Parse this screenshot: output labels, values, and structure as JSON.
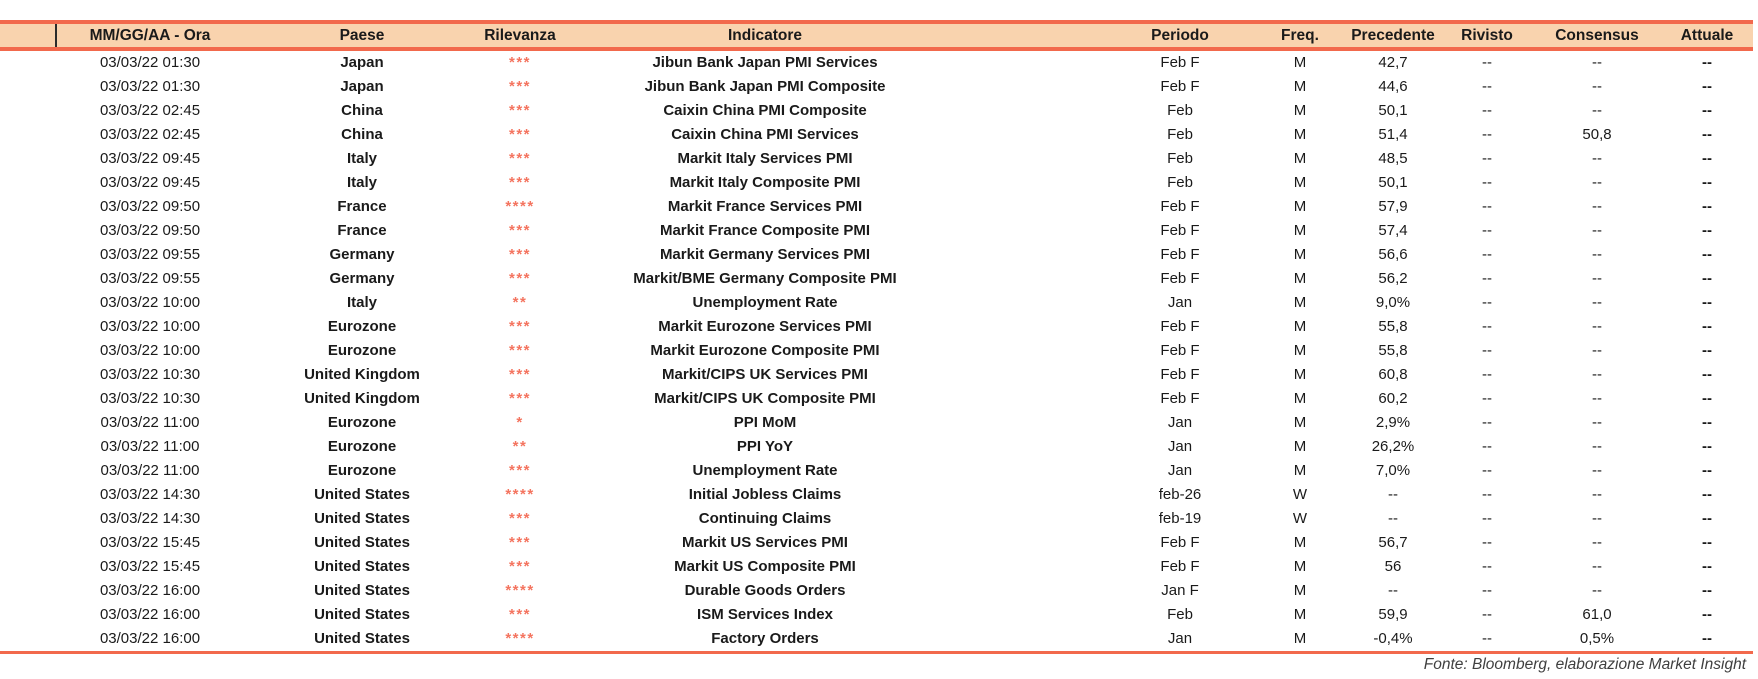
{
  "table": {
    "columns": [
      "MM/GG/AA - Ora",
      "Paese",
      "Rilevanza",
      "Indicatore",
      "Periodo",
      "Freq.",
      "Precedente",
      "Rivisto",
      "Consensus",
      "Attuale"
    ],
    "rows": [
      {
        "datetime": "03/03/22 01:30",
        "country": "Japan",
        "relevance": "***",
        "indicator": "Jibun Bank Japan PMI Services",
        "period": "Feb F",
        "freq": "M",
        "previous": "42,7",
        "revised": "--",
        "consensus": "--",
        "actual": "--"
      },
      {
        "datetime": "03/03/22 01:30",
        "country": "Japan",
        "relevance": "***",
        "indicator": "Jibun Bank Japan PMI Composite",
        "period": "Feb F",
        "freq": "M",
        "previous": "44,6",
        "revised": "--",
        "consensus": "--",
        "actual": "--"
      },
      {
        "datetime": "03/03/22 02:45",
        "country": "China",
        "relevance": "***",
        "indicator": "Caixin China PMI Composite",
        "period": "Feb",
        "freq": "M",
        "previous": "50,1",
        "revised": "--",
        "consensus": "--",
        "actual": "--"
      },
      {
        "datetime": "03/03/22 02:45",
        "country": "China",
        "relevance": "***",
        "indicator": "Caixin China PMI Services",
        "period": "Feb",
        "freq": "M",
        "previous": "51,4",
        "revised": "--",
        "consensus": "50,8",
        "actual": "--"
      },
      {
        "datetime": "03/03/22 09:45",
        "country": "Italy",
        "relevance": "***",
        "indicator": "Markit Italy Services PMI",
        "period": "Feb",
        "freq": "M",
        "previous": "48,5",
        "revised": "--",
        "consensus": "--",
        "actual": "--"
      },
      {
        "datetime": "03/03/22 09:45",
        "country": "Italy",
        "relevance": "***",
        "indicator": "Markit Italy Composite PMI",
        "period": "Feb",
        "freq": "M",
        "previous": "50,1",
        "revised": "--",
        "consensus": "--",
        "actual": "--"
      },
      {
        "datetime": "03/03/22 09:50",
        "country": "France",
        "relevance": "****",
        "indicator": "Markit France Services PMI",
        "period": "Feb F",
        "freq": "M",
        "previous": "57,9",
        "revised": "--",
        "consensus": "--",
        "actual": "--"
      },
      {
        "datetime": "03/03/22 09:50",
        "country": "France",
        "relevance": "***",
        "indicator": "Markit France Composite PMI",
        "period": "Feb F",
        "freq": "M",
        "previous": "57,4",
        "revised": "--",
        "consensus": "--",
        "actual": "--"
      },
      {
        "datetime": "03/03/22 09:55",
        "country": "Germany",
        "relevance": "***",
        "indicator": "Markit Germany Services PMI",
        "period": "Feb F",
        "freq": "M",
        "previous": "56,6",
        "revised": "--",
        "consensus": "--",
        "actual": "--"
      },
      {
        "datetime": "03/03/22 09:55",
        "country": "Germany",
        "relevance": "***",
        "indicator": "Markit/BME Germany Composite PMI",
        "period": "Feb F",
        "freq": "M",
        "previous": "56,2",
        "revised": "--",
        "consensus": "--",
        "actual": "--"
      },
      {
        "datetime": "03/03/22 10:00",
        "country": "Italy",
        "relevance": "**",
        "indicator": "Unemployment Rate",
        "period": "Jan",
        "freq": "M",
        "previous": "9,0%",
        "revised": "--",
        "consensus": "--",
        "actual": "--"
      },
      {
        "datetime": "03/03/22 10:00",
        "country": "Eurozone",
        "relevance": "***",
        "indicator": "Markit Eurozone Services PMI",
        "period": "Feb F",
        "freq": "M",
        "previous": "55,8",
        "revised": "--",
        "consensus": "--",
        "actual": "--"
      },
      {
        "datetime": "03/03/22 10:00",
        "country": "Eurozone",
        "relevance": "***",
        "indicator": "Markit Eurozone Composite PMI",
        "period": "Feb F",
        "freq": "M",
        "previous": "55,8",
        "revised": "--",
        "consensus": "--",
        "actual": "--"
      },
      {
        "datetime": "03/03/22 10:30",
        "country": "United Kingdom",
        "relevance": "***",
        "indicator": "Markit/CIPS UK Services PMI",
        "period": "Feb F",
        "freq": "M",
        "previous": "60,8",
        "revised": "--",
        "consensus": "--",
        "actual": "--"
      },
      {
        "datetime": "03/03/22 10:30",
        "country": "United Kingdom",
        "relevance": "***",
        "indicator": "Markit/CIPS UK Composite PMI",
        "period": "Feb F",
        "freq": "M",
        "previous": "60,2",
        "revised": "--",
        "consensus": "--",
        "actual": "--"
      },
      {
        "datetime": "03/03/22 11:00",
        "country": "Eurozone",
        "relevance": "*",
        "indicator": "PPI MoM",
        "period": "Jan",
        "freq": "M",
        "previous": "2,9%",
        "revised": "--",
        "consensus": "--",
        "actual": "--"
      },
      {
        "datetime": "03/03/22 11:00",
        "country": "Eurozone",
        "relevance": "**",
        "indicator": "PPI YoY",
        "period": "Jan",
        "freq": "M",
        "previous": "26,2%",
        "revised": "--",
        "consensus": "--",
        "actual": "--"
      },
      {
        "datetime": "03/03/22 11:00",
        "country": "Eurozone",
        "relevance": "***",
        "indicator": "Unemployment Rate",
        "period": "Jan",
        "freq": "M",
        "previous": "7,0%",
        "revised": "--",
        "consensus": "--",
        "actual": "--"
      },
      {
        "datetime": "03/03/22 14:30",
        "country": "United States",
        "relevance": "****",
        "indicator": "Initial Jobless Claims",
        "period": "feb-26",
        "freq": "W",
        "previous": "--",
        "revised": "--",
        "consensus": "--",
        "actual": "--"
      },
      {
        "datetime": "03/03/22 14:30",
        "country": "United States",
        "relevance": "***",
        "indicator": "Continuing Claims",
        "period": "feb-19",
        "freq": "W",
        "previous": "--",
        "revised": "--",
        "consensus": "--",
        "actual": "--"
      },
      {
        "datetime": "03/03/22 15:45",
        "country": "United States",
        "relevance": "***",
        "indicator": "Markit US Services PMI",
        "period": "Feb F",
        "freq": "M",
        "previous": "56,7",
        "revised": "--",
        "consensus": "--",
        "actual": "--"
      },
      {
        "datetime": "03/03/22 15:45",
        "country": "United States",
        "relevance": "***",
        "indicator": "Markit US Composite PMI",
        "period": "Feb F",
        "freq": "M",
        "previous": "56",
        "revised": "--",
        "consensus": "--",
        "actual": "--"
      },
      {
        "datetime": "03/03/22 16:00",
        "country": "United States",
        "relevance": "****",
        "indicator": "Durable Goods Orders",
        "period": "Jan F",
        "freq": "M",
        "previous": "--",
        "revised": "--",
        "consensus": "--",
        "actual": "--"
      },
      {
        "datetime": "03/03/22 16:00",
        "country": "United States",
        "relevance": "***",
        "indicator": "ISM Services Index",
        "period": "Feb",
        "freq": "M",
        "previous": "59,9",
        "revised": "--",
        "consensus": "61,0",
        "actual": "--"
      },
      {
        "datetime": "03/03/22 16:00",
        "country": "United States",
        "relevance": "****",
        "indicator": "Factory Orders",
        "period": "Jan",
        "freq": "M",
        "previous": "-0,4%",
        "revised": "--",
        "consensus": "0,5%",
        "actual": "--"
      }
    ]
  },
  "footer": {
    "source": "Fonte: Bloomberg, elaborazione Market Insight"
  },
  "colors": {
    "accent_border": "#F2694C",
    "header_bg": "#F9D3AE",
    "relevance_stars": "#F4745F",
    "text": "#1A1A1A",
    "footer_text": "#3F3F3F"
  }
}
